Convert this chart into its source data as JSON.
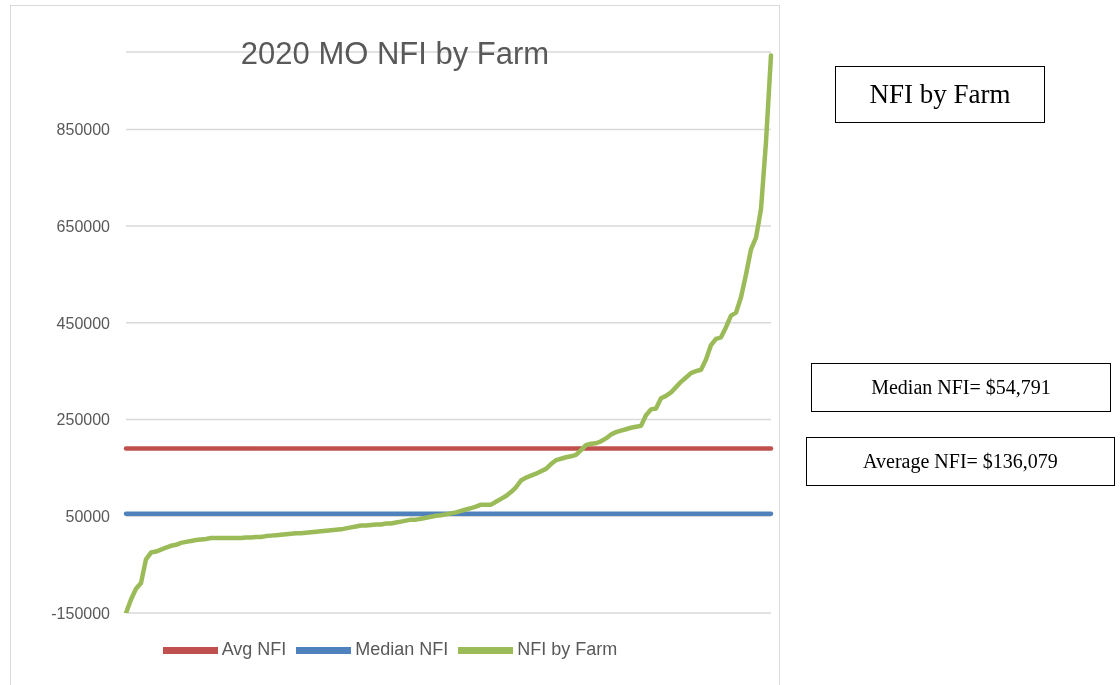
{
  "chart_data": {
    "type": "line",
    "title": "2020 MO NFI by Farm",
    "categories": [
      null,
      null,
      null,
      null,
      null,
      null,
      null,
      null,
      null,
      null,
      null,
      null,
      null,
      null,
      null,
      null,
      null,
      null,
      null,
      null,
      null,
      null,
      null,
      null,
      null,
      null,
      null,
      null,
      null,
      null,
      null,
      null,
      null,
      null,
      null,
      null,
      null,
      null,
      null,
      null,
      null,
      null,
      null,
      null,
      null,
      null,
      null,
      null,
      null,
      null,
      null,
      null,
      null,
      null,
      null,
      null,
      null,
      null,
      null,
      null,
      null,
      null,
      null,
      null,
      null,
      null,
      null,
      null,
      null,
      null,
      null,
      null,
      null,
      null,
      null,
      null,
      null,
      null,
      null,
      null,
      null,
      null,
      null,
      null,
      null,
      null,
      null,
      null,
      null,
      null,
      null,
      null,
      null,
      null,
      null,
      null,
      null,
      null,
      null,
      null,
      null,
      null,
      null,
      null,
      null,
      null,
      null,
      null,
      null,
      null,
      null,
      null,
      null,
      null,
      null,
      null,
      null,
      null,
      null,
      null,
      null,
      null,
      null,
      null,
      null,
      null,
      null,
      null,
      null,
      null
    ],
    "series": [
      {
        "name": "Median NFI",
        "color": "#4f81bd",
        "values": [
          55000,
          55000,
          55000,
          55000,
          55000,
          55000,
          55000,
          55000,
          55000,
          55000,
          55000,
          55000,
          55000,
          55000,
          55000,
          55000,
          55000,
          55000,
          55000,
          55000,
          55000,
          55000,
          55000,
          55000,
          55000,
          55000,
          55000,
          55000,
          55000,
          55000,
          55000,
          55000,
          55000,
          55000,
          55000,
          55000,
          55000,
          55000,
          55000,
          55000,
          55000,
          55000,
          55000,
          55000,
          55000,
          55000,
          55000,
          55000,
          55000,
          55000,
          55000,
          55000,
          55000,
          55000,
          55000,
          55000,
          55000,
          55000,
          55000,
          55000,
          55000,
          55000,
          55000,
          55000,
          55000,
          55000,
          55000,
          55000,
          55000,
          55000,
          55000,
          55000,
          55000,
          55000,
          55000,
          55000,
          55000,
          55000,
          55000,
          55000,
          55000,
          55000,
          55000,
          55000,
          55000,
          55000,
          55000,
          55000,
          55000,
          55000,
          55000,
          55000,
          55000,
          55000,
          55000,
          55000,
          55000,
          55000,
          55000,
          55000,
          55000,
          55000,
          55000,
          55000,
          55000,
          55000,
          55000,
          55000,
          55000,
          55000,
          55000,
          55000,
          55000,
          55000,
          55000,
          55000,
          55000,
          55000,
          55000,
          55000,
          55000,
          55000,
          55000,
          55000,
          55000,
          55000,
          55000,
          55000,
          55000,
          55000
        ]
      },
      {
        "name": "Avg NFI",
        "color": "#c0504d",
        "values": [
          190000,
          190000,
          190000,
          190000,
          190000,
          190000,
          190000,
          190000,
          190000,
          190000,
          190000,
          190000,
          190000,
          190000,
          190000,
          190000,
          190000,
          190000,
          190000,
          190000,
          190000,
          190000,
          190000,
          190000,
          190000,
          190000,
          190000,
          190000,
          190000,
          190000,
          190000,
          190000,
          190000,
          190000,
          190000,
          190000,
          190000,
          190000,
          190000,
          190000,
          190000,
          190000,
          190000,
          190000,
          190000,
          190000,
          190000,
          190000,
          190000,
          190000,
          190000,
          190000,
          190000,
          190000,
          190000,
          190000,
          190000,
          190000,
          190000,
          190000,
          190000,
          190000,
          190000,
          190000,
          190000,
          190000,
          190000,
          190000,
          190000,
          190000,
          190000,
          190000,
          190000,
          190000,
          190000,
          190000,
          190000,
          190000,
          190000,
          190000,
          190000,
          190000,
          190000,
          190000,
          190000,
          190000,
          190000,
          190000,
          190000,
          190000,
          190000,
          190000,
          190000,
          190000,
          190000,
          190000,
          190000,
          190000,
          190000,
          190000,
          190000,
          190000,
          190000,
          190000,
          190000,
          190000,
          190000,
          190000,
          190000,
          190000,
          190000,
          190000,
          190000,
          190000,
          190000,
          190000,
          190000,
          190000,
          190000,
          190000,
          190000,
          190000,
          190000,
          190000,
          190000,
          190000,
          190000,
          190000,
          190000,
          190000
        ]
      },
      {
        "name": "NFI by Farm",
        "color": "#9bbb59",
        "values": [
          -150000,
          -122000,
          -100000,
          -88000,
          -39000,
          -25000,
          -23000,
          -19000,
          -15000,
          -11000,
          -9000,
          -5000,
          -3000,
          -1000,
          1000,
          2000,
          3000,
          5000,
          5000,
          5000,
          5000,
          5000,
          5000,
          5000,
          6000,
          6000,
          7000,
          7000,
          9000,
          10000,
          11000,
          12000,
          13000,
          14000,
          15000,
          15000,
          16000,
          17000,
          18000,
          19000,
          20000,
          21000,
          22000,
          23000,
          25000,
          27000,
          29000,
          31000,
          31000,
          32000,
          33000,
          33000,
          35000,
          35000,
          37000,
          39000,
          41000,
          43000,
          43000,
          45000,
          47000,
          49000,
          51000,
          52000,
          54000,
          56000,
          58000,
          61000,
          64000,
          67000,
          70000,
          74000,
          74000,
          74000,
          80000,
          86000,
          92000,
          100000,
          110000,
          124000,
          130000,
          134000,
          138000,
          143000,
          148000,
          158000,
          166000,
          169000,
          172000,
          174000,
          177000,
          187000,
          197000,
          200000,
          201000,
          205000,
          211000,
          219000,
          224000,
          227000,
          230000,
          233000,
          235000,
          237000,
          259000,
          271000,
          273000,
          294000,
          299000,
          306000,
          317000,
          328000,
          337000,
          346000,
          350000,
          353000,
          374000,
          404000,
          417000,
          420000,
          441000,
          465000,
          471000,
          503000,
          550000,
          602000,
          626000,
          685000,
          824000,
          1003000
        ]
      }
    ],
    "ylim": [
      -150000,
      1010000
    ],
    "yticks": [
      -150000,
      50000,
      250000,
      450000,
      650000,
      850000
    ],
    "grid": "y",
    "legend": "bottom",
    "tick_labels": "y",
    "line_style": "solid",
    "annotations": [
      "NFI by Farm",
      "Median NFI= $54,791",
      "Average NFI= $136,079"
    ]
  }
}
